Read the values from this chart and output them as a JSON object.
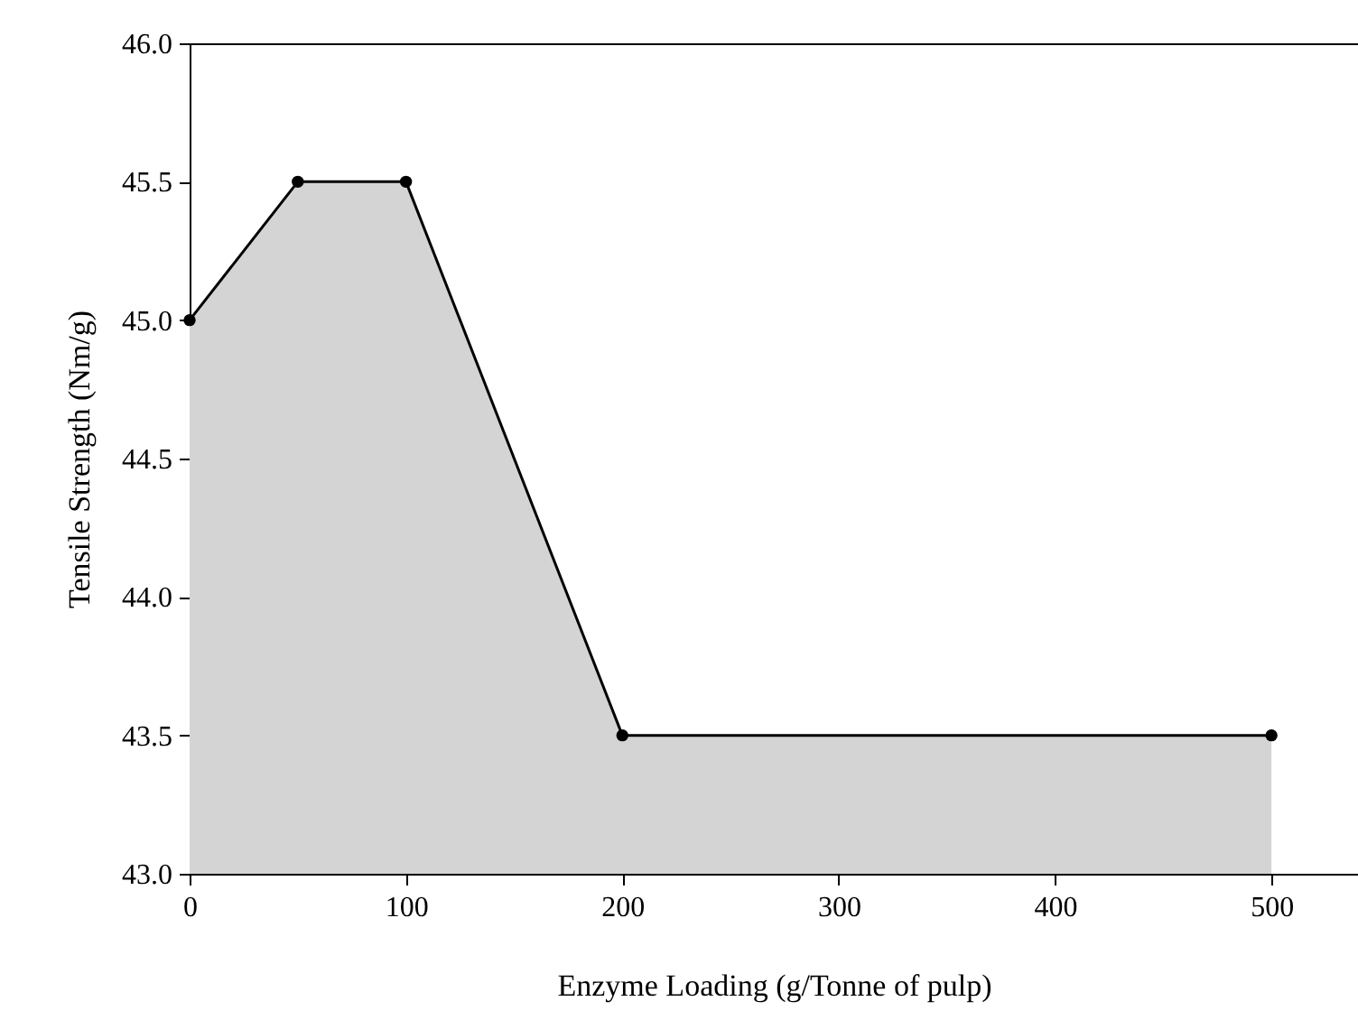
{
  "chart_data": {
    "type": "area",
    "xlabel": "Enzyme Loading (g/Tonne of pulp)",
    "ylabel": "Tensile Strength (Nm/g)",
    "x": [
      0,
      50,
      100,
      200,
      500
    ],
    "series": [
      {
        "color": "#d4d4d4",
        "values": [
          45.0,
          45.5,
          45.5,
          43.5,
          43.5
        ]
      }
    ],
    "xlim": [
      0,
      540
    ],
    "xticks": [
      0,
      100,
      200,
      300,
      400,
      500
    ],
    "ylim": [
      43.0,
      46.0
    ],
    "yticks": [
      {
        "value": 43,
        "label": "43.0"
      },
      {
        "value": 43.5,
        "label": "43.5"
      },
      {
        "value": 44,
        "label": "44.0"
      },
      {
        "value": 44.5,
        "label": "44.5"
      },
      {
        "value": 45,
        "label": "45.0"
      },
      {
        "value": 45.5,
        "label": "45.5"
      },
      {
        "value": 46,
        "label": "46.0"
      }
    ],
    "grid": false,
    "marker": "circle",
    "line_style": "solid"
  }
}
